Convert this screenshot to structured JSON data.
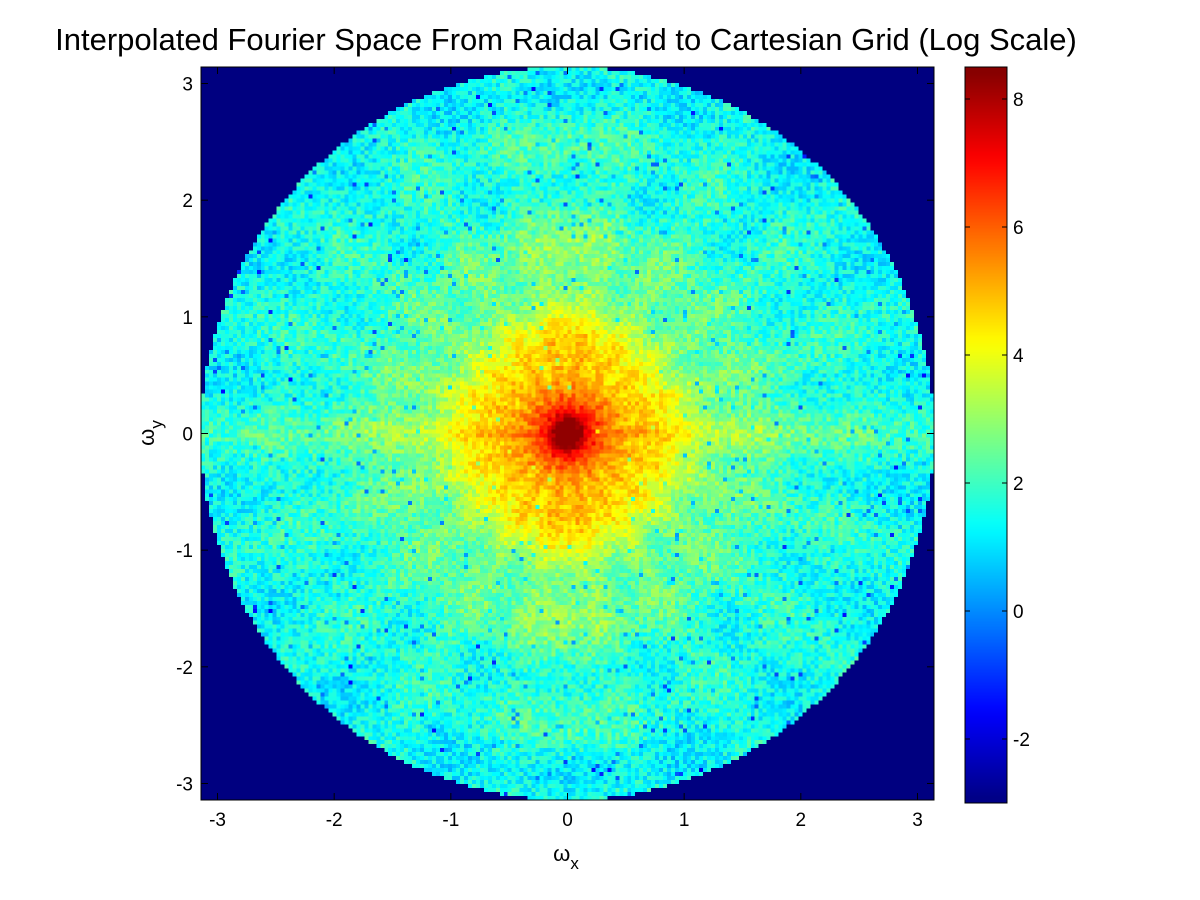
{
  "chart_data": {
    "type": "heatmap",
    "title": "Interpolated Fourier Space From Raidal Grid to Cartesian Grid (Log Scale)",
    "xlabel": {
      "symbol": "ω",
      "subscript": "x"
    },
    "ylabel": {
      "symbol": "ω",
      "subscript": "y"
    },
    "xlim": [
      -3.1416,
      3.1416
    ],
    "ylim": [
      -3.1416,
      3.1416
    ],
    "x_ticks": [
      {
        "value": -3,
        "label": "-3"
      },
      {
        "value": -2,
        "label": "-2"
      },
      {
        "value": -1,
        "label": "-1"
      },
      {
        "value": 0,
        "label": "0"
      },
      {
        "value": 1,
        "label": "1"
      },
      {
        "value": 2,
        "label": "2"
      },
      {
        "value": 3,
        "label": "3"
      }
    ],
    "y_ticks": [
      {
        "value": -3,
        "label": "-3"
      },
      {
        "value": -2,
        "label": "-2"
      },
      {
        "value": -1,
        "label": "-1"
      },
      {
        "value": 0,
        "label": "0"
      },
      {
        "value": 1,
        "label": "1"
      },
      {
        "value": 2,
        "label": "2"
      },
      {
        "value": 3,
        "label": "3"
      }
    ],
    "colormap": "jet",
    "color_range": [
      -3,
      8.5
    ],
    "colorbar_ticks": [
      {
        "value": -2,
        "label": "-2"
      },
      {
        "value": 0,
        "label": "0"
      },
      {
        "value": 2,
        "label": "2"
      },
      {
        "value": 4,
        "label": "4"
      },
      {
        "value": 6,
        "label": "6"
      },
      {
        "value": 8,
        "label": "8"
      }
    ],
    "support_radius": 3.1416,
    "outside_value": -3,
    "peak_value": 8.3,
    "peak_location": [
      0,
      0
    ],
    "rim_value": 1.3,
    "grid": false,
    "legend": "colorbar-right"
  },
  "colors": {
    "background": "#ffffff",
    "axis": "#000000",
    "outside_fill": "#000080"
  }
}
